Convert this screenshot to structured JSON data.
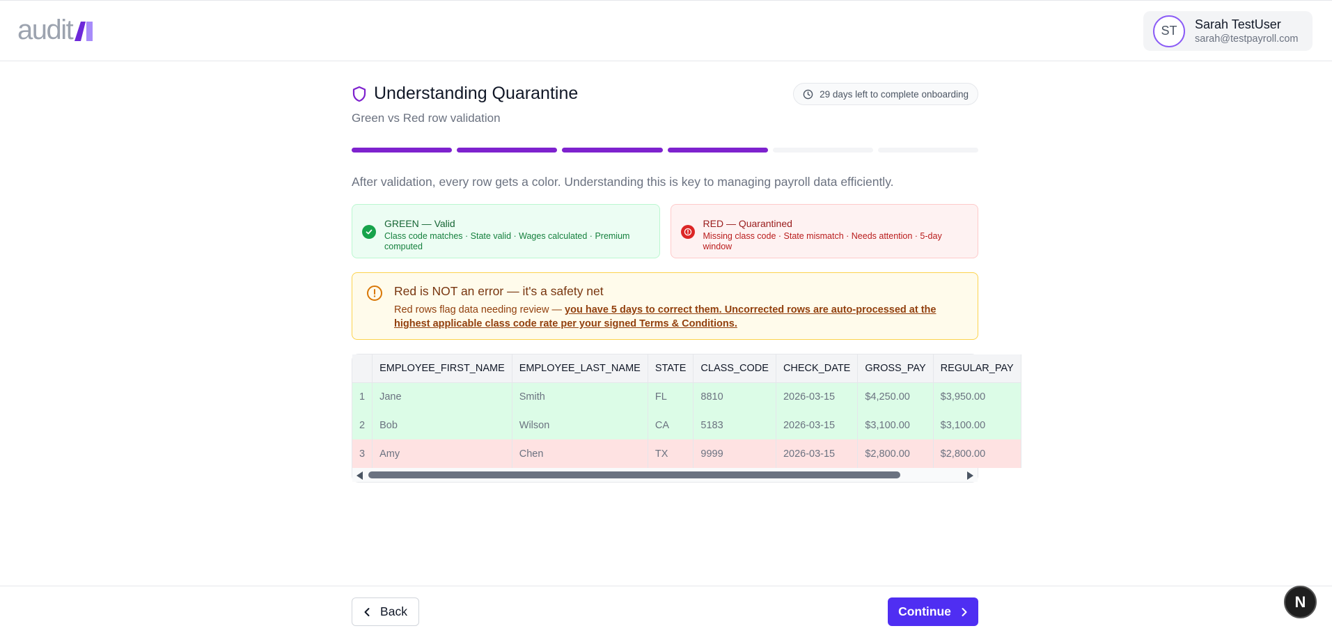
{
  "header": {
    "logo_text": "audit",
    "user": {
      "initials": "ST",
      "name": "Sarah TestUser",
      "email": "sarah@testpayroll.com"
    }
  },
  "step": {
    "title": "Understanding Quarantine",
    "subtitle": "Green vs Red row validation",
    "days_left": "29 days left to complete onboarding",
    "progress": {
      "completed": 4,
      "total": 6
    }
  },
  "intro": "After validation, every row gets a color. Understanding this is key to managing payroll data efficiently.",
  "cards": {
    "green": {
      "title": "GREEN — Valid",
      "desc": "Class code matches · State valid · Wages calculated · Premium computed"
    },
    "red": {
      "title": "RED — Quarantined",
      "desc": "Missing class code · State mismatch · Needs attention · 5-day window"
    }
  },
  "warning": {
    "title": "Red is NOT an error — it's a safety net",
    "text": "Red rows flag data needing review — ",
    "emphasis": "you have 5 days to correct them. Uncorrected rows are auto-processed at the highest applicable class code rate per your signed Terms & Conditions."
  },
  "table": {
    "columns": [
      "",
      "EMPLOYEE_FIRST_NAME",
      "EMPLOYEE_LAST_NAME",
      "STATE",
      "CLASS_CODE",
      "CHECK_DATE",
      "GROSS_PAY",
      "REGULAR_PAY"
    ],
    "rows": [
      {
        "status": "valid",
        "cells": [
          "1",
          "Jane",
          "Smith",
          "FL",
          "8810",
          "2026-03-15",
          "$4,250.00",
          "$3,950.00"
        ]
      },
      {
        "status": "valid",
        "cells": [
          "2",
          "Bob",
          "Wilson",
          "CA",
          "5183",
          "2026-03-15",
          "$3,100.00",
          "$3,100.00"
        ]
      },
      {
        "status": "quarantined",
        "cells": [
          "3",
          "Amy",
          "Chen",
          "TX",
          "9999",
          "2026-03-15",
          "$2,800.00",
          "$2,800.00"
        ]
      }
    ]
  },
  "footer": {
    "back_label": "Back",
    "continue_label": "Continue"
  },
  "dev_badge": "N",
  "colors": {
    "brand_purple": "#7e22ce",
    "continue_blue": "#4f2ef2",
    "valid_bg": "#dcfce7",
    "quarantined_bg": "#fee2e2"
  },
  "icons": [
    "shield-icon",
    "clock-icon",
    "check-circle-icon",
    "alert-circle-icon",
    "warning-circle-icon",
    "chevron-left-icon",
    "chevron-right-icon"
  ]
}
